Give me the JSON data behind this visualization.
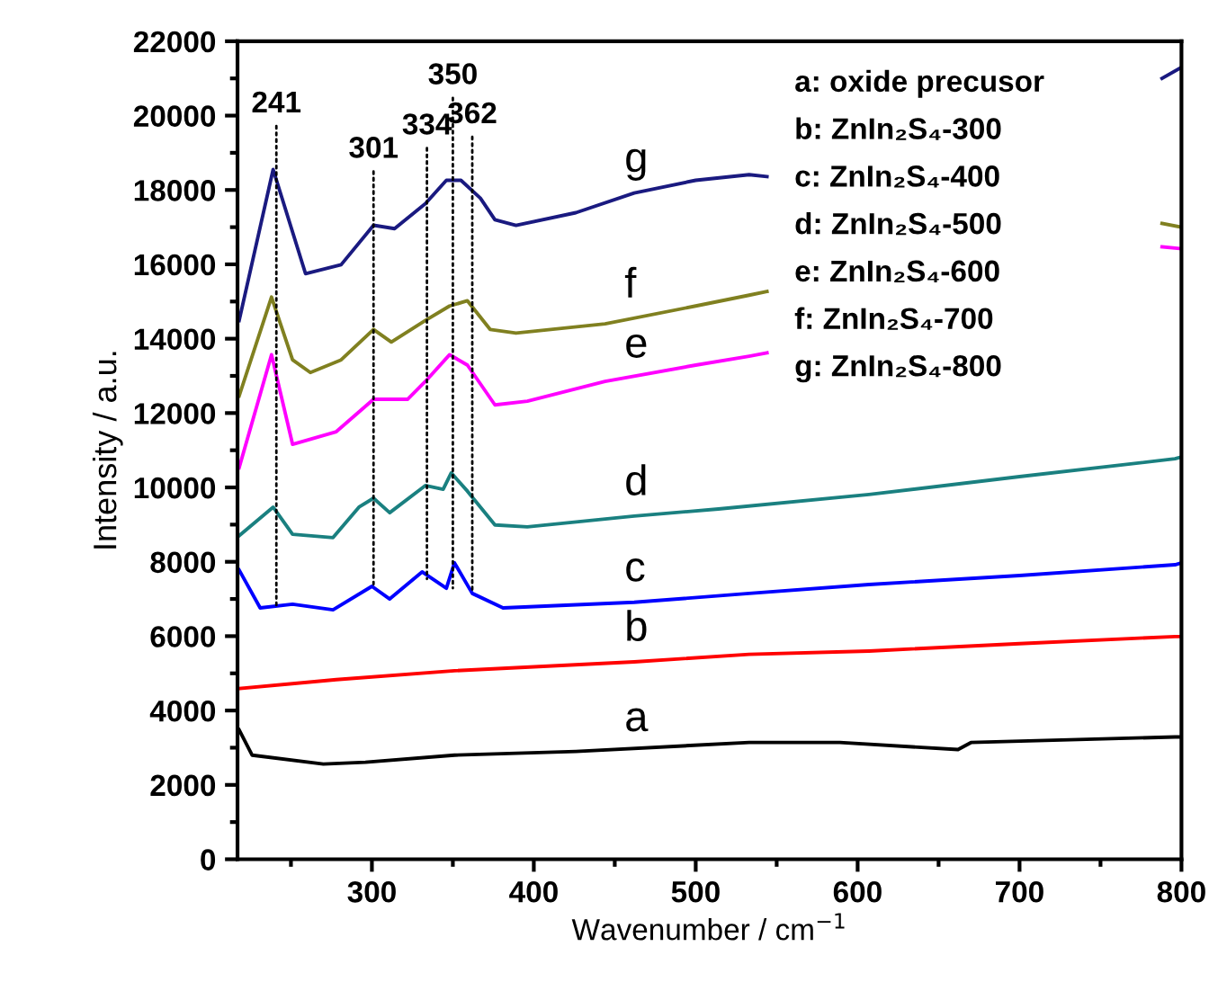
{
  "chart_data": {
    "type": "line",
    "xlabel": "Wavenumber / cm$^{−1}$",
    "ylabel": "Intensity / a.u.",
    "xlim": [
      217,
      800
    ],
    "xticks": [
      300,
      400,
      500,
      600,
      700,
      800
    ],
    "ylim": [
      0,
      22000
    ],
    "yticks": [
      0,
      2000,
      4000,
      6000,
      8000,
      10000,
      12000,
      14000,
      16000,
      18000,
      20000,
      22000
    ],
    "grid": false,
    "legend": false,
    "marker": "none",
    "line_style": "solid",
    "series": [
      {
        "color": "#000000",
        "x": [
          218,
          226,
          270,
          296,
          351,
          426,
          533,
          589,
          662,
          670,
          796,
          800
        ],
        "values": [
          3480,
          2800,
          2560,
          2610,
          2800,
          2900,
          3140,
          3140,
          2950,
          3140,
          3290,
          3290
        ]
      },
      {
        "color": "#ff0000",
        "x": [
          218,
          278,
          351,
          462,
          533,
          607,
          700,
          796,
          800
        ],
        "values": [
          4590,
          4830,
          5070,
          5310,
          5510,
          5600,
          5800,
          5990,
          5990
        ]
      },
      {
        "color": "#0000ff",
        "x": [
          218,
          231,
          251,
          276,
          300,
          311,
          331,
          346,
          351,
          362,
          381,
          462,
          533,
          607,
          700,
          796,
          800
        ],
        "values": [
          7780,
          6760,
          6860,
          6710,
          7340,
          7000,
          7730,
          7290,
          7970,
          7150,
          6760,
          6910,
          7150,
          7390,
          7630,
          7920,
          7970
        ]
      },
      {
        "color": "#1a8080",
        "x": [
          218,
          239,
          251,
          276,
          292,
          301,
          311,
          333,
          344,
          349,
          359,
          376,
          396,
          462,
          514,
          607,
          700,
          796,
          800
        ],
        "values": [
          8700,
          9470,
          8740,
          8650,
          9470,
          9710,
          9320,
          10050,
          9950,
          10390,
          9900,
          8990,
          8940,
          9230,
          9420,
          9810,
          10290,
          10770,
          10820
        ]
      },
      {
        "color": "#ff00ff",
        "x": [
          218,
          238,
          251,
          278,
          301,
          322,
          333,
          348,
          359,
          376,
          396,
          444,
          500,
          533,
          544,
          650,
          788,
          800
        ],
        "values": [
          10530,
          13570,
          11160,
          11500,
          12370,
          12370,
          12850,
          13570,
          13290,
          12220,
          12320,
          12850,
          13290,
          13530,
          13620,
          null,
          16470,
          16420
        ]
      },
      {
        "color": "#808020",
        "x": [
          218,
          238,
          251,
          262,
          281,
          301,
          312,
          333,
          348,
          359,
          373,
          389,
          444,
          500,
          533,
          544,
          650,
          788,
          800
        ],
        "values": [
          12460,
          15120,
          13430,
          13090,
          13430,
          14250,
          13910,
          14490,
          14880,
          15020,
          14250,
          14150,
          14400,
          14880,
          15170,
          15270,
          null,
          17100,
          17000
        ]
      },
      {
        "color": "#1a1a80",
        "x": [
          218,
          239,
          259,
          281,
          301,
          314,
          333,
          346,
          355,
          367,
          376,
          389,
          426,
          462,
          500,
          533,
          544,
          650,
          788,
          800
        ],
        "values": [
          14490,
          18550,
          15750,
          15990,
          17050,
          16960,
          17630,
          18260,
          18260,
          17780,
          17200,
          17050,
          17390,
          17920,
          18260,
          18410,
          18360,
          null,
          21000,
          21300
        ]
      }
    ],
    "annotations": [
      {
        "text": "241",
        "x": 241,
        "y": 6810
      },
      {
        "text": "301",
        "x": 301,
        "y": 7310
      },
      {
        "text": "334",
        "x": 334,
        "y": 7540
      },
      {
        "text": "350",
        "x": 350,
        "y": 7290
      },
      {
        "text": "362",
        "x": 362,
        "y": 7150
      },
      {
        "text": "a",
        "x": 462,
        "y": 2880
      },
      {
        "text": "b",
        "x": 462,
        "y": 5310
      },
      {
        "text": "c",
        "x": 462,
        "y": 6910
      },
      {
        "text": "d",
        "x": 462,
        "y": 9230
      },
      {
        "text": "e",
        "x": 462,
        "y": 12930
      },
      {
        "text": "f",
        "x": 462,
        "y": 14540
      },
      {
        "text": "g",
        "x": 462,
        "y": 17920
      },
      "a: oxide precusor",
      "b: ZnIn₂S₄-300",
      "c: ZnIn₂S₄-400",
      "d: ZnIn₂S₄-500",
      "e: ZnIn₂S₄-600",
      "f: ZnIn₂S₄-700",
      "g: ZnIn₂S₄-800"
    ]
  }
}
